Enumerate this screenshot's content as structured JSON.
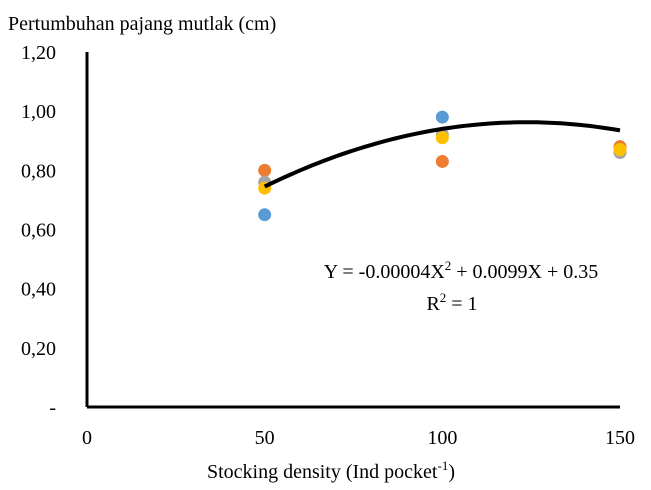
{
  "chart_data": {
    "type": "scatter",
    "ylabel": "Pertumbuhan pajang mutlak (cm)",
    "xlabel": "Stocking density (Ind pocket",
    "xlabel_sup": "-1",
    "xlabel_end": ")",
    "xlim": [
      0,
      150
    ],
    "ylim": [
      0,
      1.2
    ],
    "x_ticks": [
      0,
      50,
      100,
      150
    ],
    "x_tick_labels": [
      "0",
      "50",
      "100",
      "150"
    ],
    "y_ticks": [
      0,
      0.2,
      0.4,
      0.6,
      0.8,
      1.0,
      1.2
    ],
    "y_tick_labels": [
      "-",
      "0,20",
      "0,40",
      "0,60",
      "0,80",
      "1,00",
      "1,20"
    ],
    "grid": false,
    "series": [
      {
        "color": "#5B9BD5",
        "points": [
          [
            50,
            0.65
          ],
          [
            100,
            0.98
          ],
          [
            150,
            0.87
          ]
        ]
      },
      {
        "color": "#ED7D31",
        "points": [
          [
            50,
            0.8
          ],
          [
            100,
            0.83
          ],
          [
            150,
            0.88
          ]
        ]
      },
      {
        "color": "#A5A5A5",
        "points": [
          [
            50,
            0.76
          ],
          [
            100,
            0.92
          ],
          [
            150,
            0.86
          ]
        ]
      },
      {
        "color": "#FFC000",
        "points": [
          [
            50,
            0.74
          ],
          [
            100,
            0.91
          ],
          [
            150,
            0.87
          ]
        ]
      }
    ],
    "trendline": {
      "color": "#000000",
      "x_range": [
        50,
        150
      ],
      "coefficients": {
        "a": -4e-05,
        "b": 0.0099,
        "c": 0.35
      },
      "equation_parts": [
        "Y = -0.00004X",
        "2",
        " + 0.0099X + 0.35"
      ],
      "r2_parts": [
        "R",
        "2",
        " = 1"
      ]
    }
  }
}
